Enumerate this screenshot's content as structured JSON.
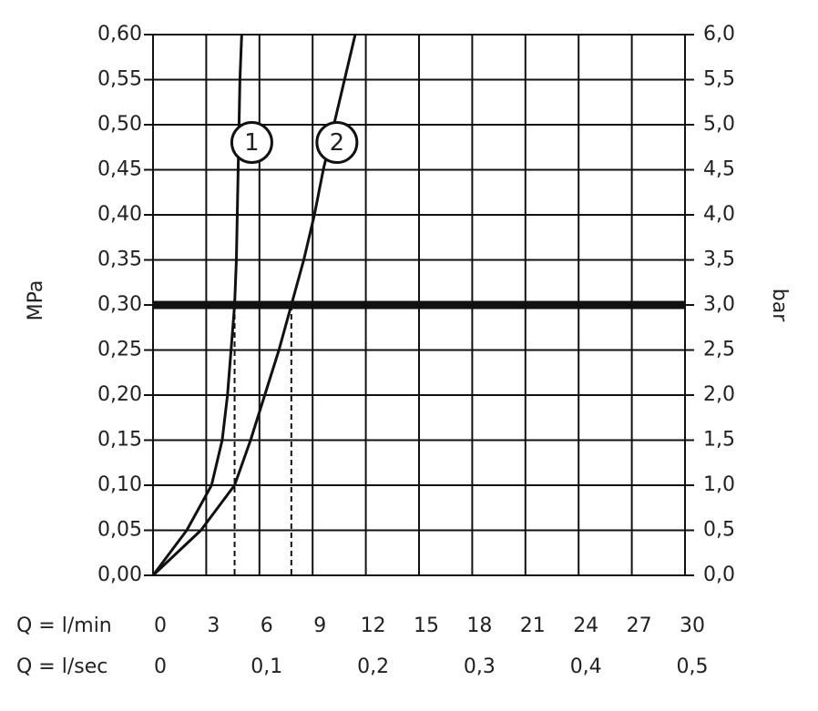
{
  "chart_data": {
    "type": "line",
    "y_label": "MPa",
    "y2_label": "bar",
    "x_label": "Q = l/min",
    "x2_label": "Q = l/sec",
    "xlim": [
      0,
      30
    ],
    "xticks": [
      0,
      3,
      6,
      9,
      12,
      15,
      18,
      21,
      24,
      27,
      30
    ],
    "x2lim": [
      0,
      0.5
    ],
    "x2ticks": [
      0,
      {
        "value": 0.1,
        "label": "0,1"
      },
      {
        "value": 0.2,
        "label": "0,2"
      },
      {
        "value": 0.3,
        "label": "0,3"
      },
      {
        "value": 0.4,
        "label": "0,4"
      },
      {
        "value": 0.5,
        "label": "0,5"
      }
    ],
    "ylim": [
      0,
      0.6
    ],
    "yticks": [
      {
        "value": 0,
        "label": "0,00"
      },
      {
        "value": 0.05,
        "label": "0,05"
      },
      {
        "value": 0.1,
        "label": "0,10"
      },
      {
        "value": 0.15,
        "label": "0,15"
      },
      {
        "value": 0.2,
        "label": "0,20"
      },
      {
        "value": 0.25,
        "label": "0,25"
      },
      {
        "value": 0.3,
        "label": "0,30"
      },
      {
        "value": 0.35,
        "label": "0,35"
      },
      {
        "value": 0.4,
        "label": "0,40"
      },
      {
        "value": 0.45,
        "label": "0,45"
      },
      {
        "value": 0.5,
        "label": "0,50"
      },
      {
        "value": 0.55,
        "label": "0,55"
      },
      {
        "value": 0.6,
        "label": "0,60"
      }
    ],
    "y2lim": [
      0,
      6
    ],
    "y2ticks": [
      {
        "value": 0,
        "label": "0,0"
      },
      {
        "value": 0.5,
        "label": "0,5"
      },
      {
        "value": 1,
        "label": "1,0"
      },
      {
        "value": 1.5,
        "label": "1,5"
      },
      {
        "value": 2,
        "label": "2,0"
      },
      {
        "value": 2.5,
        "label": "2,5"
      },
      {
        "value": 3,
        "label": "3,0"
      },
      {
        "value": 3.5,
        "label": "3,5"
      },
      {
        "value": 4,
        "label": "4,0"
      },
      {
        "value": 4.5,
        "label": "4,5"
      },
      {
        "value": 5,
        "label": "5,0"
      },
      {
        "value": 5.5,
        "label": "5,5"
      },
      {
        "value": 6,
        "label": "6,0"
      }
    ],
    "grid": true,
    "reference_line": 0.3,
    "series": [
      {
        "name": "1",
        "color": "#111111",
        "x": [
          0,
          1.9,
          3.3,
          3.9,
          4.2,
          4.4,
          4.6,
          4.7,
          4.75,
          4.8,
          4.85,
          4.9,
          5.0
        ],
        "values": [
          0,
          0.05,
          0.1,
          0.15,
          0.2,
          0.25,
          0.3,
          0.35,
          0.4,
          0.45,
          0.5,
          0.55,
          0.6
        ]
      },
      {
        "name": "2",
        "color": "#111111",
        "x": [
          0,
          2.7,
          4.6,
          5.5,
          6.3,
          7.1,
          7.8,
          8.5,
          9.1,
          9.6,
          10.2,
          10.8,
          11.4
        ],
        "values": [
          0,
          0.05,
          0.1,
          0.15,
          0.2,
          0.25,
          0.3,
          0.35,
          0.4,
          0.45,
          0.5,
          0.55,
          0.6
        ]
      }
    ]
  }
}
